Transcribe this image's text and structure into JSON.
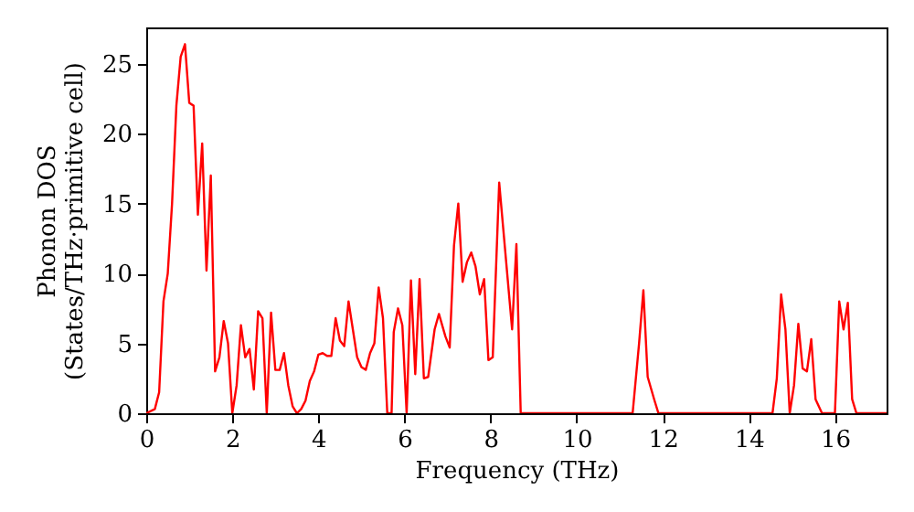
{
  "chart_data": {
    "type": "line",
    "xlabel": "Frequency (THz)",
    "ylabel": "Phonon DOS\n(States/THz·primitive cell)",
    "x": [
      0,
      0.2,
      0.3,
      0.4,
      0.5,
      0.6,
      0.7,
      0.8,
      0.9,
      1.0,
      1.1,
      1.2,
      1.3,
      1.4,
      1.5,
      1.6,
      1.7,
      1.8,
      1.9,
      2.0,
      2.1,
      2.2,
      2.3,
      2.4,
      2.5,
      2.6,
      2.7,
      2.8,
      2.9,
      3.0,
      3.1,
      3.2,
      3.3,
      3.4,
      3.5,
      3.6,
      3.7,
      3.8,
      3.9,
      4.0,
      4.1,
      4.2,
      4.3,
      4.4,
      4.5,
      4.6,
      4.7,
      4.8,
      4.9,
      5.0,
      5.1,
      5.2,
      5.3,
      5.4,
      5.5,
      5.6,
      5.7,
      5.75,
      5.85,
      5.95,
      6.05,
      6.15,
      6.25,
      6.35,
      6.45,
      6.55,
      6.7,
      6.8,
      6.95,
      7.05,
      7.15,
      7.25,
      7.35,
      7.45,
      7.55,
      7.65,
      7.75,
      7.85,
      7.95,
      8.05,
      8.2,
      8.3,
      8.5,
      8.6,
      8.7,
      11.3,
      11.45,
      11.55,
      11.65,
      11.8,
      11.9,
      14.55,
      14.65,
      14.75,
      14.85,
      14.95,
      15.05,
      15.15,
      15.25,
      15.35,
      15.45,
      15.55,
      15.7,
      16.0,
      16.1,
      16.2,
      16.3,
      16.4,
      16.5,
      17.2
    ],
    "series": [
      {
        "color": "#ff0000",
        "values": [
          0,
          0.3,
          1.5,
          8,
          10,
          15,
          22,
          25.5,
          26.4,
          22.2,
          22,
          14.2,
          19.3,
          10.2,
          17,
          3,
          4,
          6.6,
          5,
          0,
          2,
          6.3,
          4,
          4.6,
          1.7,
          7.3,
          6.8,
          0,
          7.2,
          3.1,
          3.1,
          4.3,
          2,
          0.5,
          0,
          0.3,
          0.9,
          2.3,
          3,
          4.2,
          4.3,
          4.1,
          4.1,
          6.8,
          5.2,
          4.8,
          8,
          6,
          4,
          3.3,
          3.1,
          4.3,
          5,
          9,
          6.8,
          0,
          0,
          5.8,
          7.5,
          6.3,
          0,
          9.5,
          2.8,
          9.6,
          2.5,
          2.6,
          6,
          7.1,
          5.5,
          4.7,
          12,
          15,
          9.4,
          10.8,
          11.5,
          10.5,
          8.5,
          9.6,
          3.8,
          4,
          16.5,
          13,
          6,
          12.1,
          0,
          0,
          5,
          8.8,
          2.6,
          1,
          0,
          0,
          2.5,
          8.5,
          6,
          0,
          2,
          6.4,
          3.2,
          3,
          5.3,
          1,
          0,
          0,
          8,
          6,
          7.9,
          1,
          0,
          0
        ]
      }
    ],
    "xlim": [
      0,
      17.2
    ],
    "ylim": [
      0,
      27.6
    ],
    "xticks": [
      0,
      2,
      4,
      6,
      8,
      10,
      12,
      14,
      16
    ],
    "yticks": [
      0,
      5,
      10,
      15,
      20,
      25
    ],
    "grid": false,
    "marker": "none",
    "line_style": "solid"
  }
}
